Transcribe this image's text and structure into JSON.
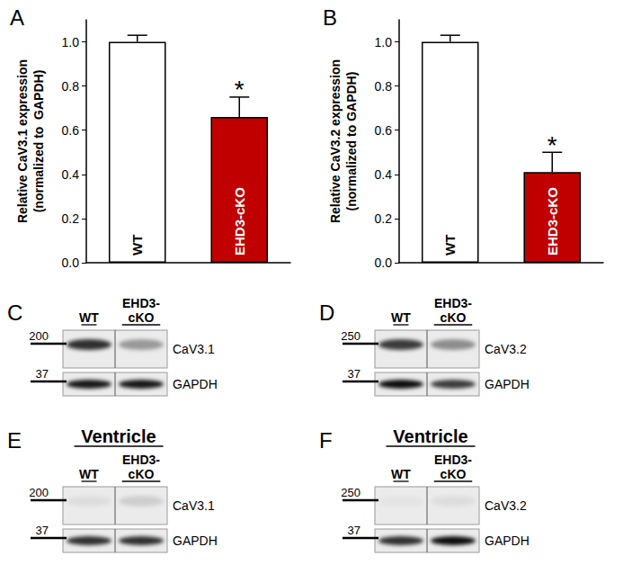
{
  "chart_data": [
    {
      "type": "bar",
      "title": "A",
      "y_label": "Relative CaV3.1 expression\n(normalized to  GAPDH)",
      "categories": [
        "WT",
        "EHD3-cKO"
      ],
      "values": [
        1.0,
        0.66
      ],
      "errors": [
        0.03,
        0.09
      ],
      "colors": [
        "#ffffff",
        "#c00000"
      ],
      "annotations": [
        {
          "category": "EHD3-cKO",
          "text": "*"
        }
      ],
      "ylim": [
        0,
        1.1
      ],
      "yticks": [
        {
          "value": 0,
          "label": "0.0"
        },
        0.2,
        0.4,
        0.6,
        0.8,
        {
          "value": 1,
          "label": "1.0"
        }
      ],
      "grid": false,
      "tick_labels": "y"
    },
    {
      "type": "bar",
      "title": "B",
      "y_label": "Relative CaV3.2 expression\n(normalized to GAPDH)",
      "categories": [
        "WT",
        "EHD3-cKO"
      ],
      "values": [
        1.0,
        0.41
      ],
      "errors": [
        0.03,
        0.09
      ],
      "colors": [
        "#ffffff",
        "#c00000"
      ],
      "annotations": [
        {
          "category": "EHD3-cKO",
          "text": "*"
        }
      ],
      "ylim": [
        0,
        1.1
      ],
      "yticks": [
        {
          "value": 0,
          "label": "0.0"
        },
        0.2,
        0.4,
        0.6,
        0.8,
        {
          "value": 1,
          "label": "1.0"
        }
      ],
      "grid": false,
      "tick_labels": "y"
    }
  ],
  "blots": [
    {
      "panel": "C",
      "lanes": [
        "WT",
        "EHD3-\ncKO"
      ],
      "rows": [
        {
          "label": "CaV3.1",
          "marker": 200
        },
        {
          "label": "GAPDH",
          "marker": 37
        }
      ]
    },
    {
      "panel": "D",
      "lanes": [
        "WT",
        "EHD3-\ncKO"
      ],
      "rows": [
        {
          "label": "CaV3.2",
          "marker": 250
        },
        {
          "label": "GAPDH",
          "marker": 37
        }
      ]
    },
    {
      "panel": "E",
      "heading": "Ventricle",
      "lanes": [
        "WT",
        "EHD3-\ncKO"
      ],
      "rows": [
        {
          "label": "CaV3.1",
          "marker": 200
        },
        {
          "label": "GAPDH",
          "marker": 37
        }
      ]
    },
    {
      "panel": "F",
      "heading": "Ventricle",
      "lanes": [
        "WT",
        "EHD3-\ncKO"
      ],
      "rows": [
        {
          "label": "CaV3.2",
          "marker": 250
        },
        {
          "label": "GAPDH",
          "marker": 37
        }
      ]
    }
  ]
}
